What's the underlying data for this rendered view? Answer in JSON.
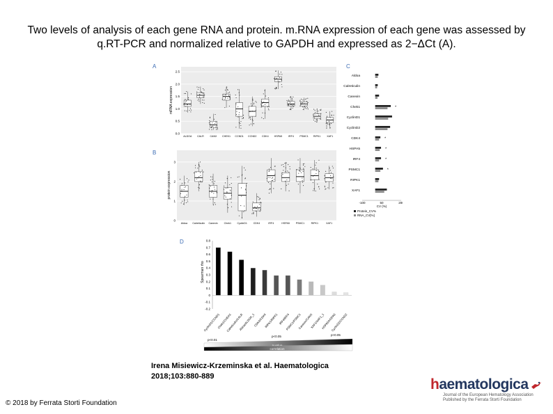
{
  "slide": {
    "title": "Two levels of analysis of each gene RNA and protein. m.RNA expression of each gene was assessed by q.RT-PCR and normalized relative to GAPDH and expressed as 2−ΔCt (A).",
    "citation_line1": "Irena Misiewicz-Krzeminska et al. Haematologica",
    "citation_line2": "2018;103:880-889",
    "copyright": "© 2018 by Ferrata Storti Foundation",
    "logo": {
      "wordmark_prefix": "h",
      "wordmark_rest": "aematologica",
      "line1": "Journal of the European Hematology Association",
      "line2": "Published by the Ferrata Storti Foundation",
      "emblem": "stork-emblem-icon"
    }
  },
  "chart_data": [
    {
      "panel": "A",
      "type": "boxplot",
      "ylabel": "mRNA expression",
      "yticks": [
        "0.0",
        "0.5",
        "1.0",
        "1.5",
        "2.0",
        "2.5"
      ],
      "ylim": [
        0,
        2.7
      ],
      "categories": [
        "ALDOA",
        "CALR",
        "CANX",
        "CHEK1",
        "CCND1",
        "CCND2",
        "CDK4",
        "HSPA5",
        "IRF4",
        "PSMC1",
        "RIPK1",
        "XAF1"
      ],
      "medians": [
        1.2,
        1.55,
        0.35,
        1.5,
        1.0,
        0.9,
        1.25,
        2.2,
        1.2,
        1.2,
        0.7,
        0.55
      ],
      "q1": [
        1.1,
        1.45,
        0.25,
        1.35,
        0.7,
        0.7,
        1.1,
        2.1,
        1.12,
        1.12,
        0.62,
        0.45
      ],
      "q3": [
        1.35,
        1.65,
        0.5,
        1.6,
        1.25,
        1.1,
        1.4,
        2.3,
        1.3,
        1.28,
        0.8,
        0.65
      ],
      "whisker_low": [
        0.85,
        1.2,
        0.15,
        1.05,
        0.2,
        0.3,
        0.6,
        1.8,
        0.95,
        0.95,
        0.45,
        0.2
      ],
      "whisker_high": [
        1.7,
        1.9,
        0.8,
        1.9,
        1.8,
        1.5,
        1.8,
        2.55,
        1.5,
        1.45,
        1.0,
        0.9
      ],
      "grid": true
    },
    {
      "panel": "B",
      "type": "boxplot",
      "ylabel": "protein expression",
      "yticks": [
        "0",
        "1",
        "2",
        "3"
      ],
      "ylim": [
        0,
        3.6
      ],
      "categories": [
        "Aldoa",
        "Calreticulin",
        "Canexin",
        "Chek1",
        "CyclinD1",
        "CDK4",
        "IRF4",
        "HSPA5",
        "PSMC1",
        "RIPK1",
        "XAF1"
      ],
      "medians": [
        1.5,
        2.2,
        1.5,
        1.4,
        1.3,
        0.65,
        2.3,
        2.2,
        2.25,
        2.3,
        2.2
      ],
      "q1": [
        1.2,
        2.0,
        1.2,
        1.1,
        0.5,
        0.5,
        2.0,
        2.0,
        2.0,
        2.1,
        2.0
      ],
      "q3": [
        1.8,
        2.5,
        1.8,
        1.7,
        1.9,
        0.9,
        2.6,
        2.45,
        2.6,
        2.6,
        2.4
      ],
      "whisker_low": [
        0.8,
        1.5,
        0.8,
        0.4,
        0.1,
        0.2,
        1.4,
        1.5,
        1.4,
        1.5,
        1.6
      ],
      "whisker_high": [
        2.3,
        3.0,
        2.4,
        2.3,
        2.8,
        1.4,
        3.2,
        3.0,
        3.2,
        3.1,
        2.8
      ],
      "grid": true
    },
    {
      "panel": "C",
      "type": "bar",
      "orientation": "horizontal",
      "categories": [
        "Aldoa",
        "Calreticulin",
        "Canexin",
        "Chek1",
        "CyclinD1",
        "CyclinD2",
        "CDK4",
        "HSPA5",
        "IRF4",
        "PSMC1",
        "RIPK1",
        "XAF1"
      ],
      "series": [
        {
          "name": "Protein_CV%",
          "color": "#222222",
          "values": [
            25,
            20,
            30,
            120,
            130,
            115,
            40,
            45,
            45,
            60,
            30,
            90
          ]
        },
        {
          "name": "RNA_CV[%]",
          "color": "#8c8c8c",
          "values": [
            20,
            15,
            18,
            95,
            100,
            95,
            30,
            35,
            30,
            40,
            25,
            70
          ]
        }
      ],
      "significant": [
        false,
        false,
        false,
        true,
        false,
        false,
        true,
        true,
        true,
        true,
        false,
        false
      ],
      "significance_marker": "*",
      "xticks": [
        "-100",
        "50",
        "200"
      ],
      "xlabel": "CV (%)",
      "xlim": [
        -100,
        200
      ],
      "legend": "bottom"
    },
    {
      "panel": "D",
      "type": "bar",
      "ylabel": "Spearman rho",
      "yticks": [
        "-0.2",
        "-0.1",
        "0",
        "0.1",
        "0.2",
        "0.3",
        "0.4",
        "0.5",
        "0.6",
        "0.7",
        "0.8"
      ],
      "ylim": [
        -0.2,
        0.8
      ],
      "categories": [
        "CyclinD1/CCND1",
        "Chek1/CHEK1",
        "Calreticulin/CALR",
        "Aldoa/ALDOA_1",
        "CDK4/CDK4",
        "RIPK1/RIPK1",
        "IRF4/IRF4",
        "PSMC1/PSMC1",
        "Canexin/CANX",
        "XAF1/XAF1_1",
        "HSPA5/HSPA5",
        "CyclinD2/CCND2"
      ],
      "values": [
        0.7,
        0.64,
        0.52,
        0.4,
        0.37,
        0.29,
        0.29,
        0.23,
        0.2,
        0.15,
        0.05,
        0.04
      ],
      "bar_colors": [
        "#000000",
        "#000000",
        "#000000",
        "#1e1e1e",
        "#3a3a3a",
        "#555555",
        "#555555",
        "#7a7a7a",
        "#b9b9b9",
        "#c8c8c8",
        "#dcdcdc",
        "#e4e4e4"
      ],
      "pvalue_labels": [
        "p<0.01",
        "p<0.05",
        "p>0.05"
      ],
      "gradient_labels": [
        "p-value",
        "correlation"
      ]
    }
  ]
}
